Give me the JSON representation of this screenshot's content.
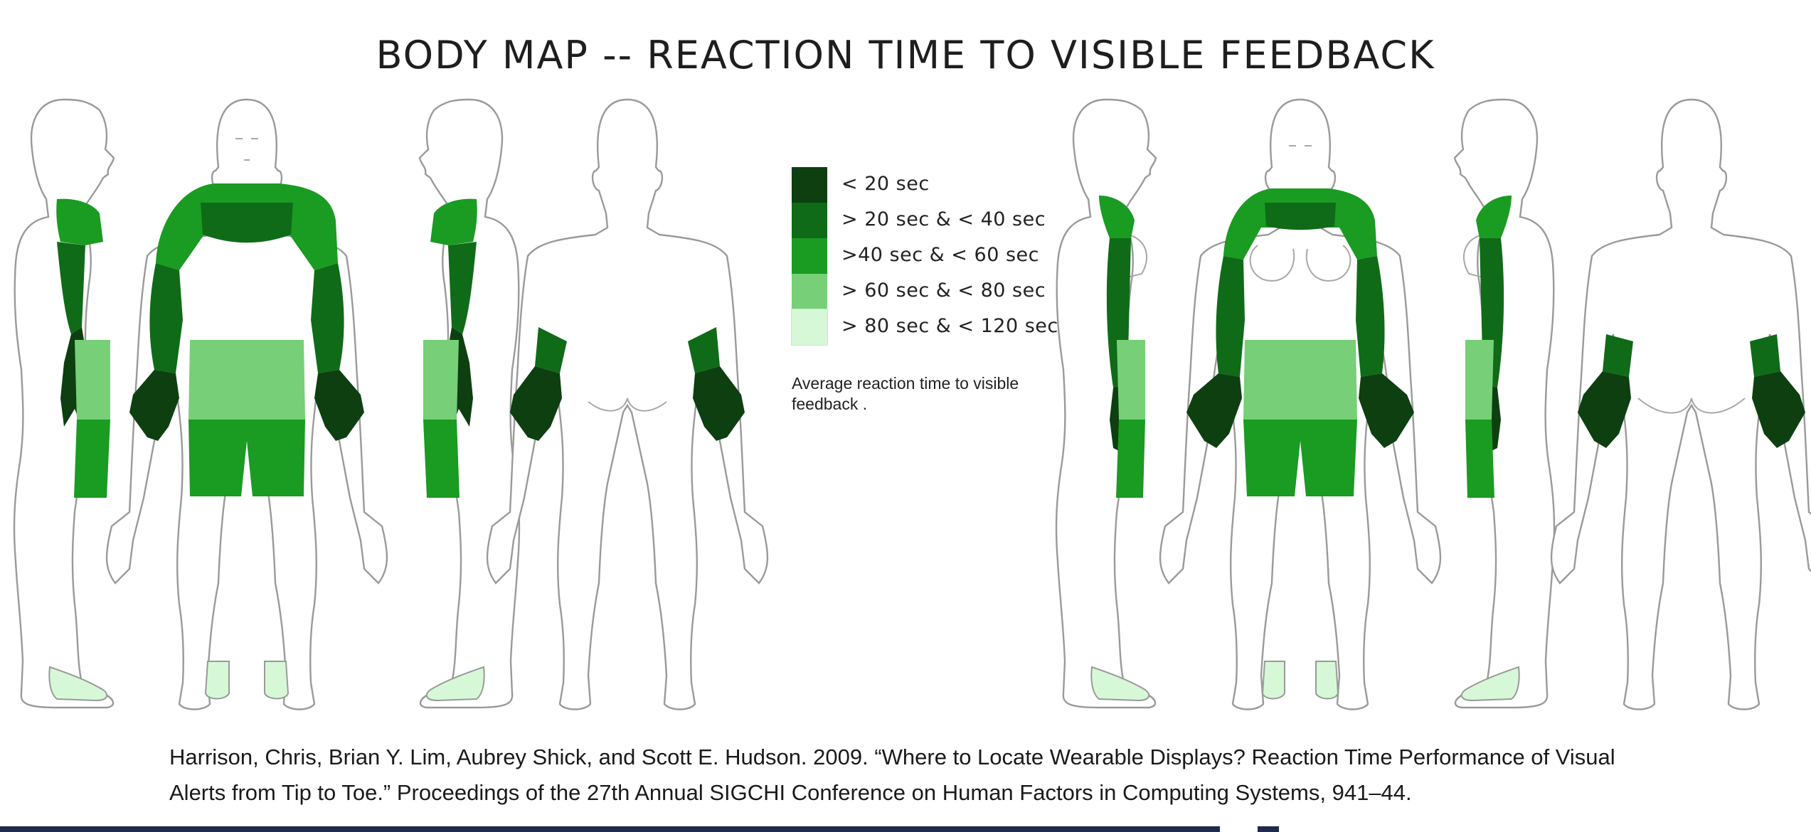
{
  "title": "BODY MAP -- REACTION TIME TO VISIBLE FEEDBACK",
  "legend": {
    "items": [
      {
        "label": "< 20 sec",
        "color": "#0d3f10"
      },
      {
        "label": "> 20 sec & < 40 sec",
        "color": "#0f6b17"
      },
      {
        "label": ">40 sec & < 60 sec",
        "color": "#1a9b22"
      },
      {
        "label": "> 60 sec & < 80 sec",
        "color": "#77cf77"
      },
      {
        "label": "> 80 sec & < 120 sec",
        "color": "#d6f8d6"
      }
    ],
    "caption": "Average reaction time to visible feedback ."
  },
  "figures": [
    {
      "name": "male-side-left"
    },
    {
      "name": "male-front"
    },
    {
      "name": "male-side-right"
    },
    {
      "name": "male-back"
    },
    {
      "name": "female-side-left"
    },
    {
      "name": "female-front"
    },
    {
      "name": "female-side-right"
    },
    {
      "name": "female-back"
    }
  ],
  "citation": {
    "line1": "Harrison, Chris, Brian Y. Lim, Aubrey Shick, and Scott E. Hudson. 2009. “Where to Locate Wearable Displays? Reaction Time Performance of Visual",
    "line2": "Alerts from Tip to Toe.” Proceedings of the 27th Annual SIGCHI Conference on Human Factors in Computing Systems, 941–44."
  }
}
